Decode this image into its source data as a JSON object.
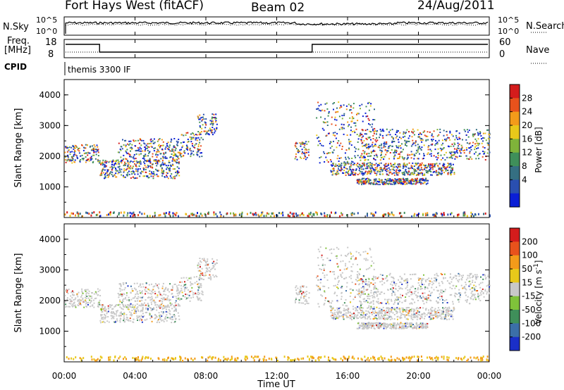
{
  "header": {
    "station": "Fort Hays West (fitACF)",
    "beam": "Beam 02",
    "date": "24/Aug/2011"
  },
  "top_panels": {
    "nsky_label": "N.Sky",
    "nsky_ticks": [
      "10^5",
      "10^0"
    ],
    "nsearch_label": "N.Search",
    "nsearch_ticks": [
      "10^5",
      "10^0"
    ],
    "freq_label": "Freq.",
    "freq_unit": "[MHz]",
    "freq_ticks": [
      "18",
      "8"
    ],
    "nave_label": "Nave",
    "nave_ticks": [
      "60",
      "0"
    ],
    "cpid_label": "CPID",
    "cpid_value": "themis 3300 IF"
  },
  "chart_data": [
    {
      "type": "heatmap",
      "name": "power",
      "ylabel": "Slant Range [km]",
      "ylim": [
        0,
        4500
      ],
      "yticks": [
        "4000",
        "3000",
        "2000",
        "1000"
      ],
      "xlim_hours": [
        0,
        24
      ],
      "colorbar_label": "Power [dB]",
      "colorbar_ticks": [
        "28",
        "24",
        "20",
        "16",
        "12",
        "8",
        "4"
      ],
      "colorbar_colors": [
        "#0b1fd6",
        "#2a4fb0",
        "#356f82",
        "#3f8f5a",
        "#7fb33a",
        "#e8c81a",
        "#f39b1a",
        "#e8521c",
        "#d41c1c"
      ]
    },
    {
      "type": "heatmap",
      "name": "velocity",
      "ylabel": "Slant Range [km]",
      "ylim": [
        0,
        4500
      ],
      "yticks": [
        "4000",
        "3000",
        "2000",
        "1000"
      ],
      "xlim_hours": [
        0,
        24
      ],
      "colorbar_label": "Velocity [m s",
      "colorbar_label_sup": "-1",
      "colorbar_label_end": "]",
      "colorbar_ticks": [
        "200",
        "100",
        "50",
        "15",
        "-15",
        "-50",
        "-100",
        "-200"
      ],
      "colorbar_colors": [
        "#1a2fc8",
        "#3b6fa8",
        "#3f8f5a",
        "#7fc23a",
        "#c8c8c8",
        "#e8c81a",
        "#f39b1a",
        "#e8521c",
        "#d41c1c"
      ]
    }
  ],
  "x_axis": {
    "ticks": [
      "00:00",
      "04:00",
      "08:00",
      "12:00",
      "16:00",
      "20:00",
      "00:00"
    ],
    "label": "Time UT"
  }
}
